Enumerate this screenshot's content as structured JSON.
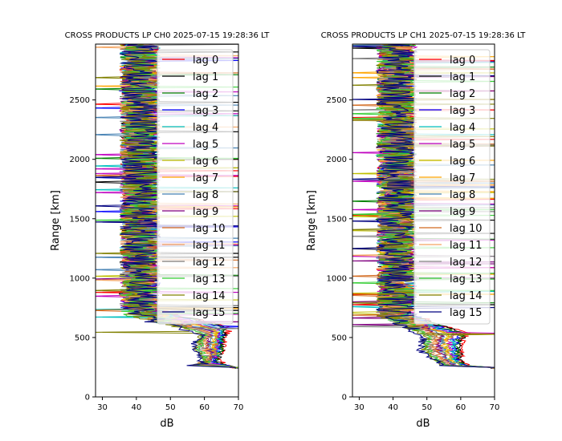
{
  "chart_data": [
    {
      "type": "line",
      "title": "CROSS PRODUCTS LP CH0 2025-07-15 19:28:36 LT",
      "xlabel": "dB",
      "ylabel": "Range [km]",
      "xlim": [
        28,
        70
      ],
      "ylim": [
        0,
        2970
      ],
      "xticks": [
        30,
        40,
        50,
        60,
        70
      ],
      "yticks": [
        0,
        500,
        1000,
        1500,
        2000,
        2500
      ],
      "grid": false,
      "legend": "top-right",
      "series": [
        {
          "name": "lag 0"
        },
        {
          "name": "lag 1"
        },
        {
          "name": "lag 2"
        },
        {
          "name": "lag 3"
        },
        {
          "name": "lag 4"
        },
        {
          "name": "lag 5"
        },
        {
          "name": "lag 6"
        },
        {
          "name": "lag 7"
        },
        {
          "name": "lag 8"
        },
        {
          "name": "lag 9"
        },
        {
          "name": "lag 10"
        },
        {
          "name": "lag 11"
        },
        {
          "name": "lag 12"
        },
        {
          "name": "lag 13"
        },
        {
          "name": "lag 14"
        },
        {
          "name": "lag 15"
        }
      ],
      "profile_shape": {
        "lag0_near_range": [
          [
            69,
            240
          ],
          [
            64,
            300
          ],
          [
            65,
            400
          ],
          [
            66,
            500
          ],
          [
            67,
            560
          ],
          [
            66,
            600
          ]
        ],
        "lag15_near_range": [
          [
            70,
            250
          ],
          [
            55,
            260
          ],
          [
            60,
            280
          ],
          [
            58,
            340
          ],
          [
            57,
            450
          ],
          [
            59,
            520
          ],
          [
            60,
            560
          ]
        ],
        "noise_floor_db": [
          33,
          48
        ],
        "top_of_profiles": 2970
      }
    },
    {
      "type": "line",
      "title": "CROSS PRODUCTS LP CH1 2025-07-15 19:28:36 LT",
      "xlabel": "dB",
      "ylabel": "Range [km]",
      "xlim": [
        28,
        70
      ],
      "ylim": [
        0,
        2970
      ],
      "xticks": [
        30,
        40,
        50,
        60,
        70
      ],
      "yticks": [
        0,
        500,
        1000,
        1500,
        2000,
        2500
      ],
      "grid": false,
      "legend": "top-right",
      "series": [
        {
          "name": "lag 0"
        },
        {
          "name": "lag 1"
        },
        {
          "name": "lag 2"
        },
        {
          "name": "lag 3"
        },
        {
          "name": "lag 4"
        },
        {
          "name": "lag 5"
        },
        {
          "name": "lag 6"
        },
        {
          "name": "lag 7"
        },
        {
          "name": "lag 8"
        },
        {
          "name": "lag 9"
        },
        {
          "name": "lag 10"
        },
        {
          "name": "lag 11"
        },
        {
          "name": "lag 12"
        },
        {
          "name": "lag 13"
        },
        {
          "name": "lag 14"
        },
        {
          "name": "lag 15"
        }
      ],
      "profile_shape": {
        "lag0_near_range": [
          [
            70,
            250
          ],
          [
            62,
            260
          ],
          [
            60,
            300
          ],
          [
            60,
            400
          ],
          [
            61,
            500
          ],
          [
            62,
            540
          ]
        ],
        "lag15_near_range": [
          [
            70,
            250
          ],
          [
            55,
            260
          ],
          [
            53,
            300
          ],
          [
            50,
            340
          ],
          [
            48,
            400
          ],
          [
            49,
            500
          ]
        ],
        "noise_floor_db": [
          32,
          48
        ],
        "top_of_profiles": 2970
      }
    }
  ],
  "series_colors": [
    "#ff0000",
    "#000000",
    "#008000",
    "#0000ff",
    "#00bfbf",
    "#bf00bf",
    "#bfbf00",
    "#ffa500",
    "#4682b4",
    "#800080",
    "#d2691e",
    "#f4a460",
    "#808080",
    "#32cd32",
    "#808000",
    "#000080"
  ]
}
